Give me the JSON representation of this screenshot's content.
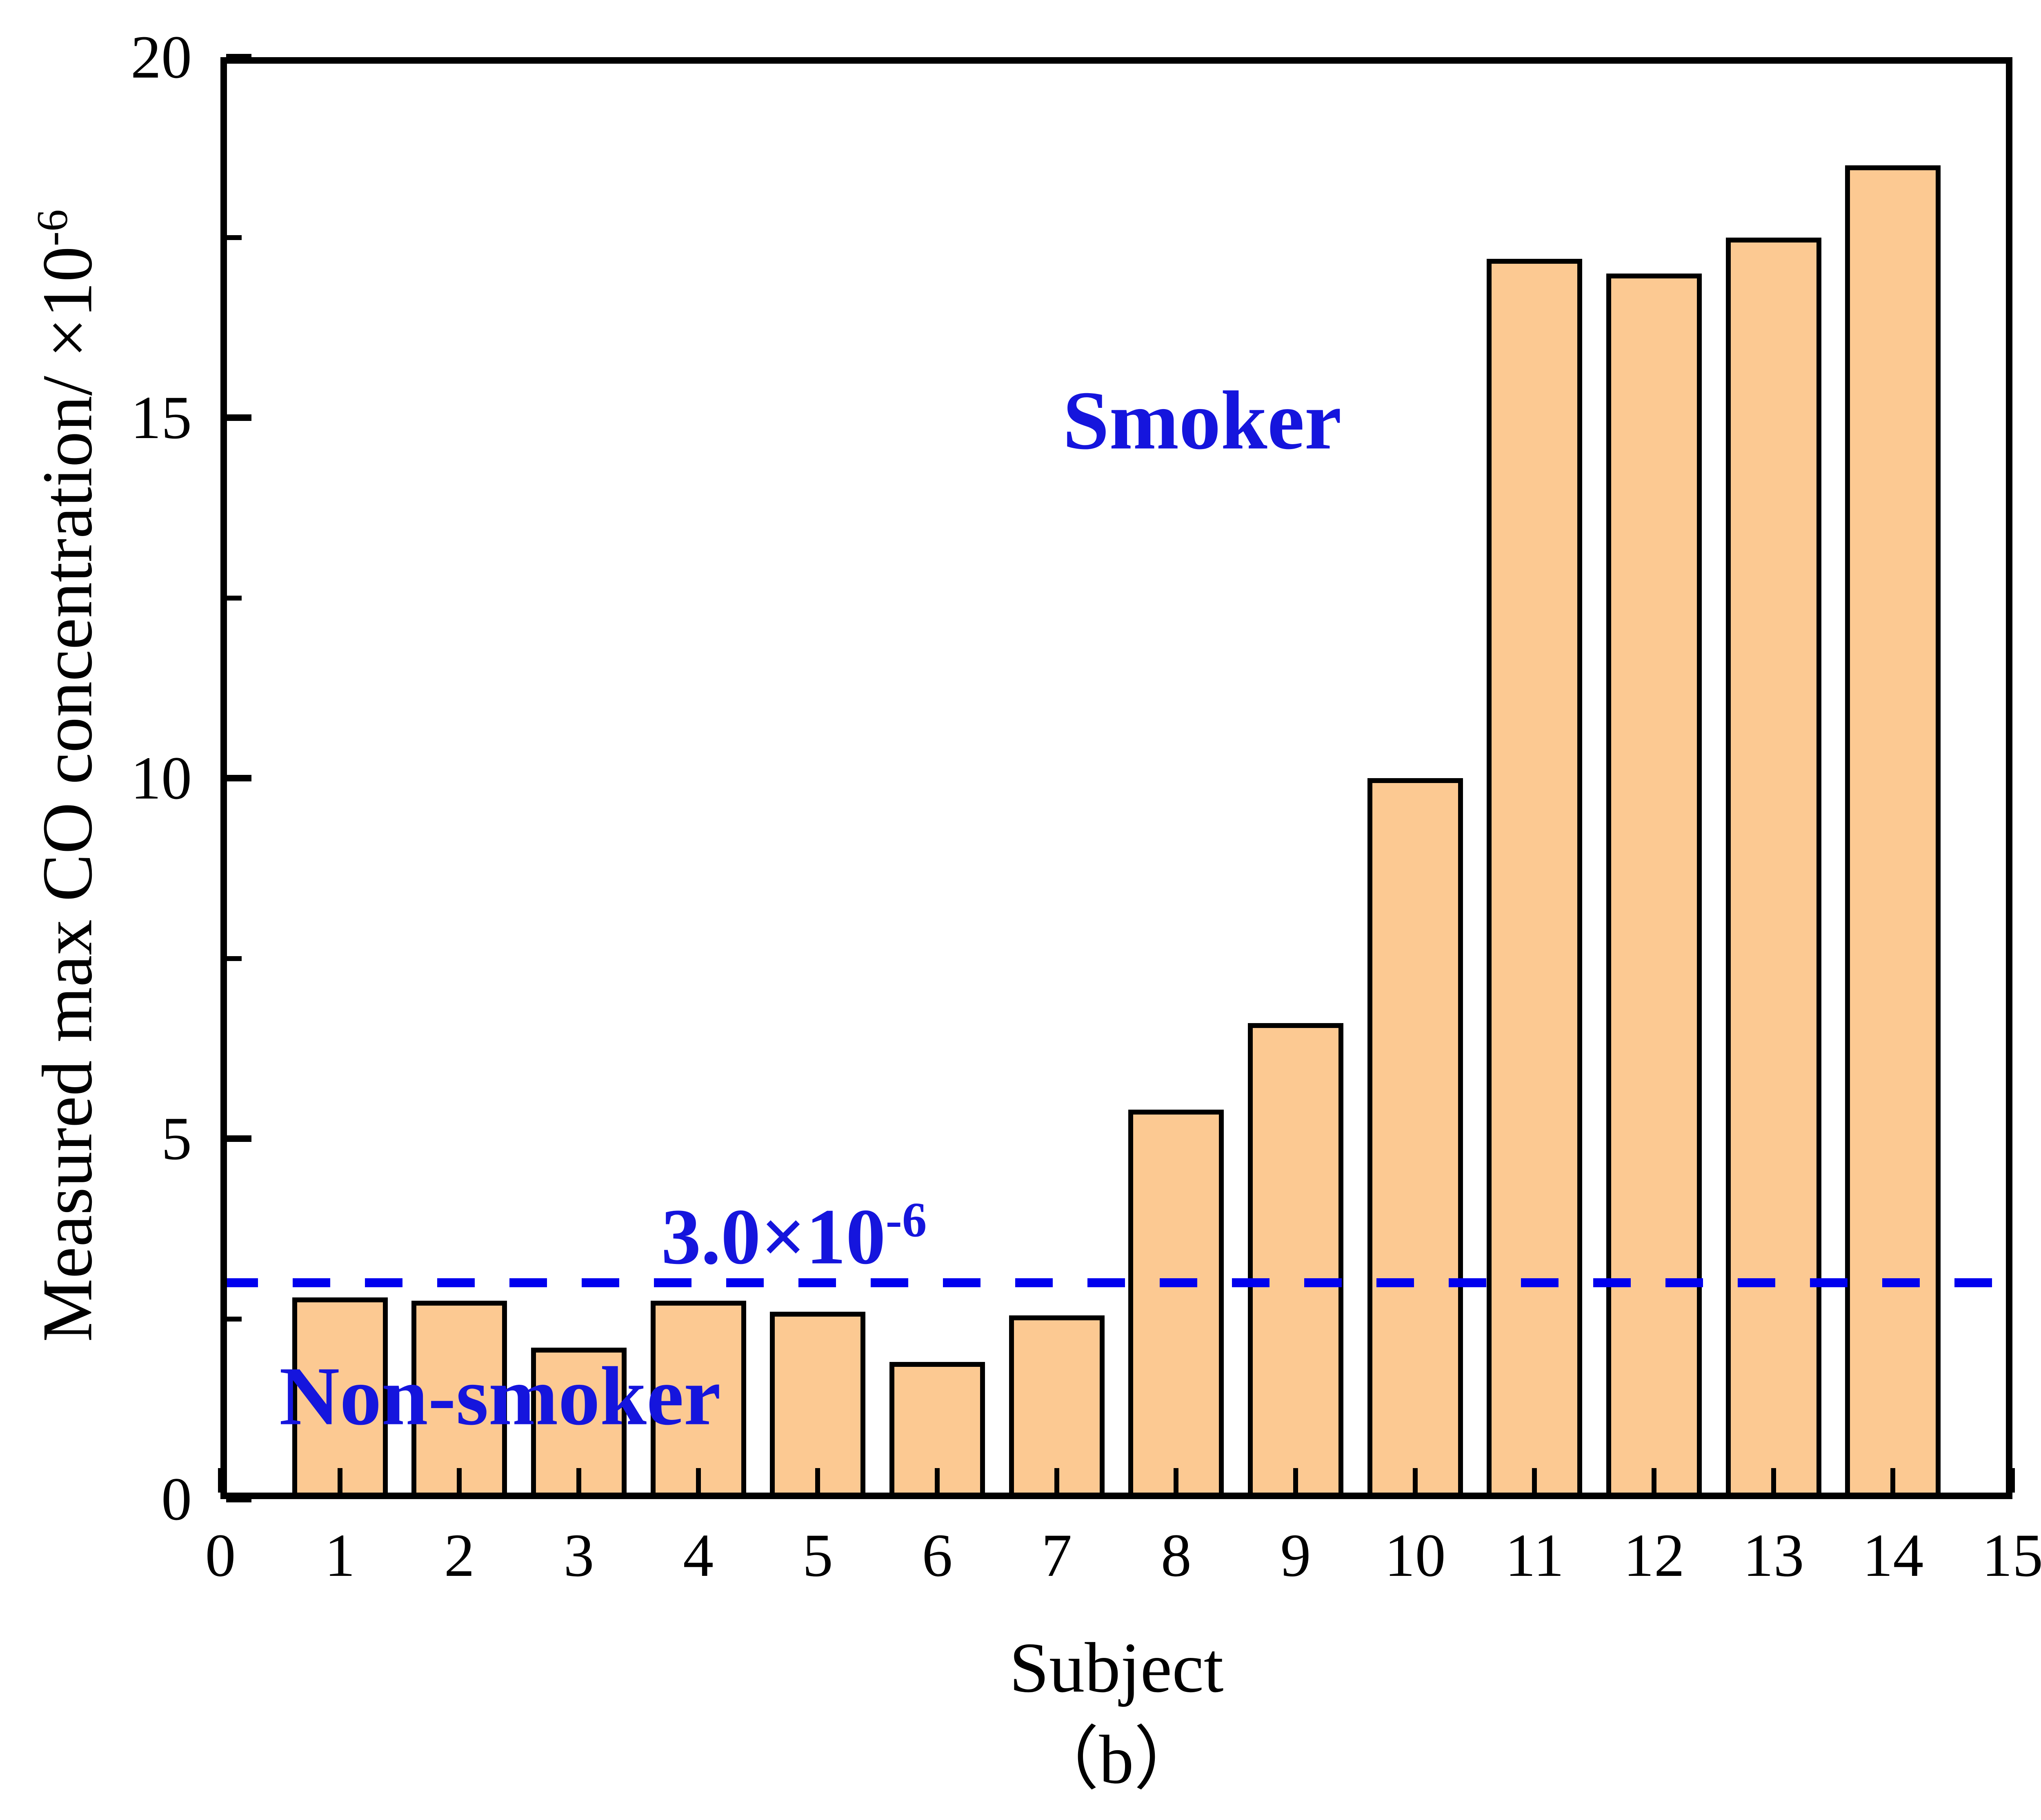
{
  "figure": {
    "caption": "（b）",
    "background_color": "#ffffff"
  },
  "axes": {
    "x": {
      "label": "Subject",
      "range": [
        0,
        15
      ],
      "ticks": [
        0,
        1,
        2,
        3,
        4,
        5,
        6,
        7,
        8,
        9,
        10,
        11,
        12,
        13,
        14,
        15
      ],
      "tick_labels": [
        "0",
        "1",
        "2",
        "3",
        "4",
        "5",
        "6",
        "7",
        "8",
        "9",
        "10",
        "11",
        "12",
        "13",
        "14",
        "15"
      ]
    },
    "y": {
      "label_base": "Measured max CO concentration/ ×10",
      "label_exp": "-6",
      "range": [
        0,
        20
      ],
      "ticks": [
        0,
        5,
        10,
        15,
        20
      ],
      "tick_labels": [
        "0",
        "5",
        "10",
        "15",
        "20"
      ],
      "minor_ticks": [
        2.5,
        7.5,
        12.5,
        17.5
      ]
    }
  },
  "annotations": {
    "smoker_label": "Smoker",
    "non_smoker_label": "Non-smoker",
    "threshold_label_base": "3.0×10",
    "threshold_label_exp": "-6",
    "text_color": "#1515dd"
  },
  "chart_data": {
    "type": "bar",
    "title": "",
    "xlabel": "Subject",
    "ylabel": "Measured max CO concentration/ ×10^-6",
    "categories": [
      1,
      2,
      3,
      4,
      5,
      6,
      7,
      8,
      9,
      10,
      11,
      12,
      13,
      14
    ],
    "values": [
      2.8,
      2.75,
      2.1,
      2.75,
      2.6,
      1.9,
      2.55,
      5.4,
      6.6,
      10.0,
      17.2,
      17.0,
      17.5,
      18.5
    ],
    "xlim": [
      0,
      15
    ],
    "ylim": [
      0,
      20
    ],
    "grid": false,
    "bar_width_units": 0.8,
    "bar_fill_color": "#fcc992",
    "bar_edge_color": "#000000",
    "frame_color": "#000000",
    "reference_line": {
      "y": 3.0,
      "style": "dashed",
      "color": "#0000ee",
      "label": "3.0×10^-6"
    },
    "group_labels": [
      "Non-smoker",
      "Smoker"
    ]
  }
}
